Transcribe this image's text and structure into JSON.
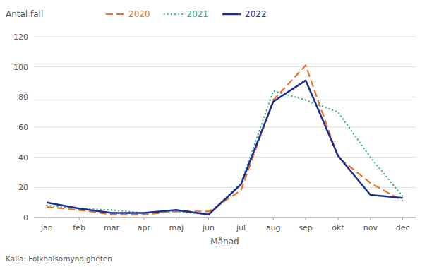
{
  "chart_data": {
    "type": "line",
    "xlabel": "Månad",
    "ylabel": "Antal fall",
    "categories": [
      "jan",
      "feb",
      "mar",
      "apr",
      "maj",
      "jun",
      "jul",
      "aug",
      "sep",
      "okt",
      "nov",
      "dec"
    ],
    "series": [
      {
        "name": "2020",
        "color": "#E8732A",
        "line_style": "dashed",
        "values": [
          7,
          5,
          2,
          2,
          4,
          4,
          18,
          78,
          101,
          40,
          23,
          11
        ]
      },
      {
        "name": "2021",
        "color": "#2EAF82",
        "line_style": "dotted",
        "values": [
          8,
          6,
          5,
          3,
          4,
          2,
          23,
          84,
          78,
          70,
          40,
          14
        ]
      },
      {
        "name": "2022",
        "color": "#1B2E8E",
        "line_style": "solid",
        "values": [
          10,
          6,
          3,
          3,
          5,
          2,
          22,
          77,
          91,
          41,
          15,
          13
        ]
      }
    ],
    "ylim": [
      0,
      120
    ],
    "yticks": [
      0,
      20,
      40,
      60,
      80,
      100,
      120
    ],
    "grid": true,
    "legend": "top",
    "annotations": [
      "Källa: Folkhälsomyndigheten"
    ]
  }
}
